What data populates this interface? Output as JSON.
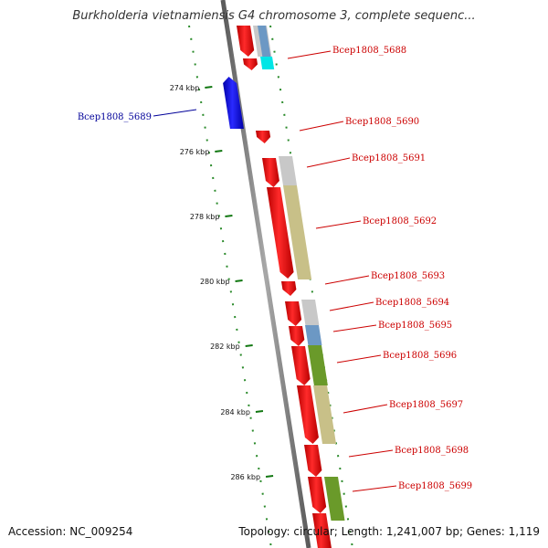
{
  "title": "Burkholderia vietnamiensis G4 chromosome 3, complete sequenc...",
  "footer": {
    "accession": "Accession: NC_009254",
    "summary": "Topology: circular; Length: 1,241,007 bp; Genes: 1,119"
  },
  "colors": {
    "forward_gene": "#ee0000",
    "reverse_gene": "#0000ee",
    "forward_label": "#cc0000",
    "reverse_label": "#000099",
    "backbone": "#808080",
    "tick": "#117711",
    "cog_gray": "#c8c8c8",
    "cog_blue": "#6c98c4",
    "cog_cyan": "#00e6e6",
    "cog_khaki": "#c8c088",
    "cog_green": "#6a9a2a"
  },
  "ticks": [
    {
      "label": "274 kbp"
    },
    {
      "label": "276 kbp"
    },
    {
      "label": "278 kbp"
    },
    {
      "label": "280 kbp"
    },
    {
      "label": "282 kbp"
    },
    {
      "label": "284 kbp"
    },
    {
      "label": "286 kbp"
    }
  ],
  "genes": [
    {
      "label": "Bcep1808_5688"
    },
    {
      "label": "Bcep1808_5689"
    },
    {
      "label": "Bcep1808_5690"
    },
    {
      "label": "Bcep1808_5691"
    },
    {
      "label": "Bcep1808_5692"
    },
    {
      "label": "Bcep1808_5693"
    },
    {
      "label": "Bcep1808_5694"
    },
    {
      "label": "Bcep1808_5695"
    },
    {
      "label": "Bcep1808_5696"
    },
    {
      "label": "Bcep1808_5697"
    },
    {
      "label": "Bcep1808_5698"
    },
    {
      "label": "Bcep1808_5699"
    }
  ]
}
